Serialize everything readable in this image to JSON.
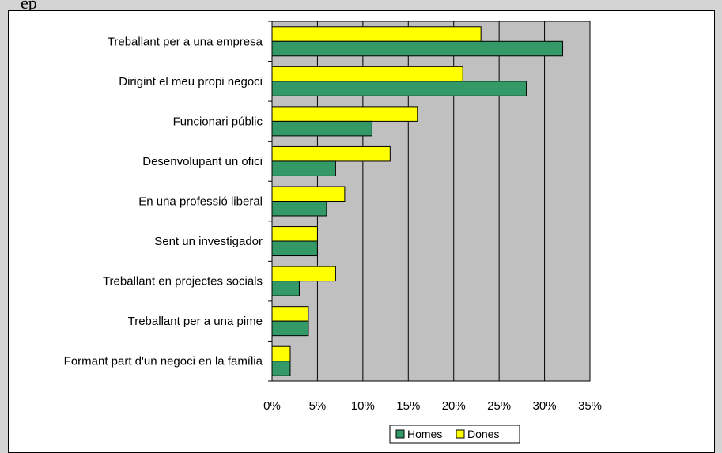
{
  "header": {
    "fragment": "ep"
  },
  "chart_data": {
    "type": "bar",
    "orientation": "horizontal",
    "categories": [
      "Treballant per a una empresa",
      "Dirigint el meu propi negoci",
      "Funcionari públic",
      "Desenvolupant un ofici",
      "En una professió liberal",
      "Sent un investigador",
      "Treballant en projectes socials",
      "Treballant per a una pime",
      "Formant part d'un negoci en la família"
    ],
    "series": [
      {
        "name": "Homes",
        "color": "#339966",
        "values": [
          32,
          28,
          11,
          7,
          6,
          5,
          3,
          4,
          2
        ]
      },
      {
        "name": "Dones",
        "color": "#ffff00",
        "values": [
          23,
          21,
          16,
          13,
          8,
          5,
          7,
          4,
          2
        ]
      }
    ],
    "xlim": [
      0,
      35
    ],
    "xticks": [
      "0%",
      "5%",
      "10%",
      "15%",
      "20%",
      "25%",
      "30%",
      "35%"
    ],
    "tick_values": [
      0,
      5,
      10,
      15,
      20,
      25,
      30,
      35
    ],
    "plot_background": "#c0c0c0",
    "grid": true,
    "legend_position": "bottom"
  }
}
